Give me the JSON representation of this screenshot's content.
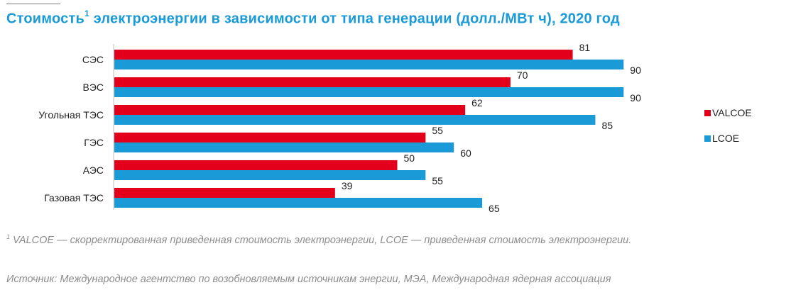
{
  "title": {
    "text": "Стоимость",
    "sup": "1",
    "rest": " электроэнергии в зависимости от типа генерации (долл./МВт ч), 2020 год"
  },
  "chart_data": {
    "type": "bar",
    "orientation": "horizontal",
    "categories": [
      "СЭС",
      "ВЭС",
      "Угольная ТЭС",
      "ГЭС",
      "АЭС",
      "Газовая ТЭС"
    ],
    "series": [
      {
        "name": "VALCOE",
        "color": "#e2001a",
        "values": [
          81,
          70,
          62,
          55,
          50,
          39
        ]
      },
      {
        "name": "LCOE",
        "color": "#1a9bd7",
        "values": [
          90,
          90,
          85,
          60,
          55,
          65
        ]
      }
    ],
    "xlim": [
      0,
      100
    ],
    "grid": false,
    "legend_placement": "right"
  },
  "footnote": {
    "sup": "1",
    "text": " VALCOE — скорректированная приведенная стоимость электроэнергии, LCOE — приведенная стоимость электроэнергии."
  },
  "source": "Источник: Международное агентство по возобновляемым источникам энергии, МЭА, Международная ядерная ассоциация"
}
